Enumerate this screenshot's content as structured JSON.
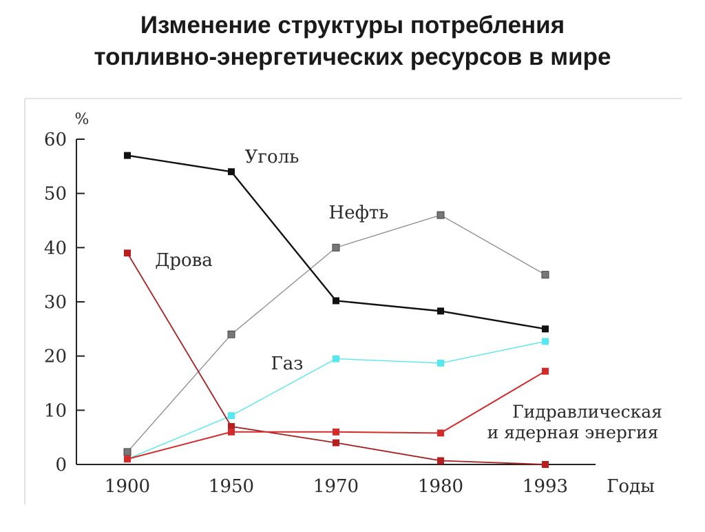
{
  "title": {
    "line1": "Изменение структуры потребления",
    "line2": "топливно-энергетических ресурсов в мире"
  },
  "chart_data": {
    "type": "line",
    "categories": [
      "1900",
      "1950",
      "1970",
      "1980",
      "1993"
    ],
    "x": [
      1900,
      1950,
      1970,
      1980,
      1993
    ],
    "ylabel": "%",
    "xlabel": "Годы",
    "yticks": [
      0,
      10,
      20,
      30,
      40,
      50,
      60
    ],
    "ylim": [
      0,
      60
    ],
    "grid": false,
    "series": [
      {
        "name": "Уголь",
        "color": "#111111",
        "values": [
          57,
          54,
          30.2,
          28.3,
          25
        ]
      },
      {
        "name": "Нефть",
        "color": "#8a8a8a",
        "values": [
          2.3,
          24,
          40,
          46,
          35
        ]
      },
      {
        "name": "Дрова",
        "color": "#a52020",
        "values": [
          39,
          7,
          4,
          0.7,
          0
        ]
      },
      {
        "name": "Газ",
        "color": "#55e8ee",
        "values": [
          1,
          9,
          19.5,
          18.7,
          22.7
        ]
      },
      {
        "name": "Гидравлическая и ядерная энергия",
        "label_lines": [
          "Гидравлическая",
          "и ядерная энергия"
        ],
        "color": "#d42a2a",
        "values": [
          1,
          6,
          6,
          5.8,
          17.2
        ]
      }
    ]
  }
}
